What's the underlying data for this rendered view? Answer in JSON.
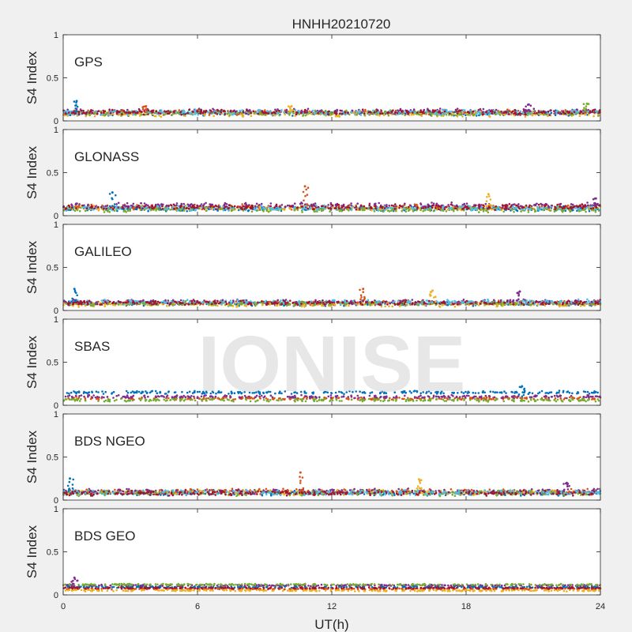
{
  "figure": {
    "title": "HNHH20210720",
    "xlabel": "UT(h)",
    "watermark": "IONISE"
  },
  "chart_data": [
    {
      "type": "scatter",
      "title": "GPS",
      "ylabel": "S4 Index",
      "xlim": [
        0,
        24
      ],
      "ylim": [
        0,
        1
      ],
      "xticks": [
        0,
        6,
        12,
        18,
        24
      ],
      "yticks": [
        0,
        0.5,
        1
      ],
      "grid": false,
      "series_colors": [
        "#0072BD",
        "#D95319",
        "#EDB120",
        "#7E2F8E",
        "#77AC30",
        "#4DBEEE",
        "#A2142F"
      ],
      "baseline_values": [
        0.09,
        0.1,
        0.08,
        0.11,
        0.09,
        0.1,
        0.1
      ],
      "noise": 0.035,
      "peaks": [
        [
          0.6,
          0.23
        ],
        [
          3.7,
          0.17
        ],
        [
          10.2,
          0.17
        ],
        [
          20.8,
          0.19
        ],
        [
          23.4,
          0.2
        ]
      ]
    },
    {
      "type": "scatter",
      "title": "GLONASS",
      "ylabel": "S4 Index",
      "xlim": [
        0,
        24
      ],
      "ylim": [
        0,
        1
      ],
      "xticks": [
        0,
        6,
        12,
        18,
        24
      ],
      "yticks": [
        0,
        0.5,
        1
      ],
      "grid": false,
      "series_colors": [
        "#0072BD",
        "#D95319",
        "#EDB120",
        "#7E2F8E",
        "#77AC30",
        "#4DBEEE",
        "#A2142F"
      ],
      "baseline_values": [
        0.08,
        0.1,
        0.09,
        0.12,
        0.07,
        0.09,
        0.1
      ],
      "noise": 0.035,
      "peaks": [
        [
          2.2,
          0.27
        ],
        [
          10.8,
          0.34
        ],
        [
          19.0,
          0.25
        ],
        [
          23.8,
          0.2
        ]
      ]
    },
    {
      "type": "scatter",
      "title": "GALILEO",
      "ylabel": "S4 Index",
      "xlim": [
        0,
        24
      ],
      "ylim": [
        0,
        1
      ],
      "xticks": [
        0,
        6,
        12,
        18,
        24
      ],
      "yticks": [
        0,
        0.5,
        1
      ],
      "grid": false,
      "series_colors": [
        "#0072BD",
        "#D95319",
        "#EDB120",
        "#7E2F8E",
        "#77AC30",
        "#4DBEEE",
        "#A2142F"
      ],
      "baseline_values": [
        0.08,
        0.09,
        0.07,
        0.1,
        0.08,
        0.1,
        0.09
      ],
      "noise": 0.03,
      "peaks": [
        [
          0.5,
          0.25
        ],
        [
          13.4,
          0.25
        ],
        [
          16.5,
          0.23
        ],
        [
          20.4,
          0.22
        ]
      ]
    },
    {
      "type": "scatter",
      "title": "SBAS",
      "ylabel": "S4 Index",
      "xlim": [
        0,
        24
      ],
      "ylim": [
        0,
        1
      ],
      "xticks": [
        0,
        6,
        12,
        18,
        24
      ],
      "yticks": [
        0,
        0.5,
        1
      ],
      "grid": false,
      "series_colors": [
        "#0072BD",
        "#D95319",
        "#7E2F8E",
        "#77AC30"
      ],
      "baseline_values": [
        0.15,
        0.08,
        0.1,
        0.06
      ],
      "noise": 0.02,
      "peaks": [
        [
          20.5,
          0.22
        ]
      ]
    },
    {
      "type": "scatter",
      "title": "BDS NGEO",
      "ylabel": "S4 Index",
      "xlim": [
        0,
        24
      ],
      "ylim": [
        0,
        1
      ],
      "xticks": [
        0,
        6,
        12,
        18,
        24
      ],
      "yticks": [
        0,
        0.5,
        1
      ],
      "grid": false,
      "series_colors": [
        "#0072BD",
        "#D95319",
        "#EDB120",
        "#7E2F8E",
        "#77AC30",
        "#4DBEEE",
        "#A2142F"
      ],
      "baseline_values": [
        0.08,
        0.1,
        0.09,
        0.1,
        0.08,
        0.09,
        0.08
      ],
      "noise": 0.035,
      "peaks": [
        [
          0.3,
          0.25
        ],
        [
          10.6,
          0.32
        ],
        [
          15.9,
          0.24
        ],
        [
          22.5,
          0.2
        ]
      ]
    },
    {
      "type": "scatter",
      "title": "BDS GEO",
      "ylabel": "S4 Index",
      "xlim": [
        0,
        24
      ],
      "ylim": [
        0,
        1
      ],
      "xticks": [
        0,
        6,
        12,
        18,
        24
      ],
      "yticks": [
        0,
        0.5,
        1
      ],
      "grid": false,
      "series_colors": [
        "#7E2F8E",
        "#77AC30",
        "#0072BD",
        "#D95319",
        "#EDB120",
        "#A2142F"
      ],
      "baseline_values": [
        0.11,
        0.12,
        0.09,
        0.07,
        0.05,
        0.08
      ],
      "noise": 0.01,
      "peaks": [
        [
          0.5,
          0.2
        ]
      ]
    }
  ]
}
